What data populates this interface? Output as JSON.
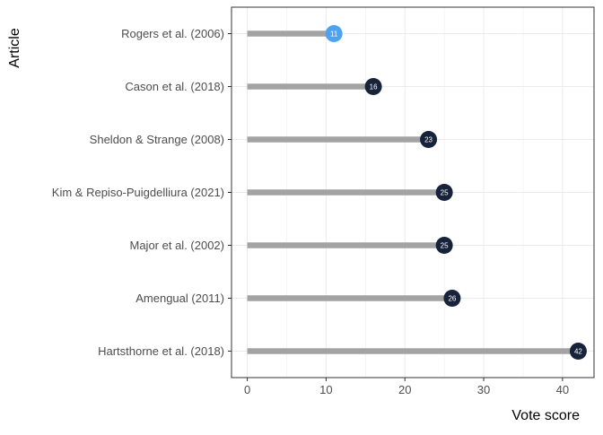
{
  "chart_data": {
    "type": "lollipop",
    "xlabel": "Vote score",
    "ylabel": "Article",
    "xlim": [
      -2,
      44
    ],
    "xticks": [
      0,
      10,
      20,
      30,
      40
    ],
    "grid": true,
    "colors": {
      "stick": "#a3a3a3",
      "point_default": "#16233a",
      "point_highlight": "#4da3f0",
      "grid": "#ebebeb",
      "panel_border": "#333333",
      "axis_text": "#4d4d4d",
      "title_text": "#000000"
    },
    "items": [
      {
        "article": "Rogers et al. (2006)",
        "score": 11,
        "label": "11",
        "highlight": true
      },
      {
        "article": "Cason et al. (2018)",
        "score": 16,
        "label": "16",
        "highlight": false
      },
      {
        "article": "Sheldon & Strange (2008)",
        "score": 23,
        "label": "23",
        "highlight": false
      },
      {
        "article": "Kim & Repiso-Puigdelliura (2021)",
        "score": 25,
        "label": "25",
        "highlight": false
      },
      {
        "article": "Major et al. (2002)",
        "score": 25,
        "label": "25",
        "highlight": false
      },
      {
        "article": "Amengual (2011)",
        "score": 26,
        "label": "26",
        "highlight": false
      },
      {
        "article": "Hartsthorne et al. (2018)",
        "score": 42,
        "label": "42",
        "highlight": false
      }
    ]
  }
}
